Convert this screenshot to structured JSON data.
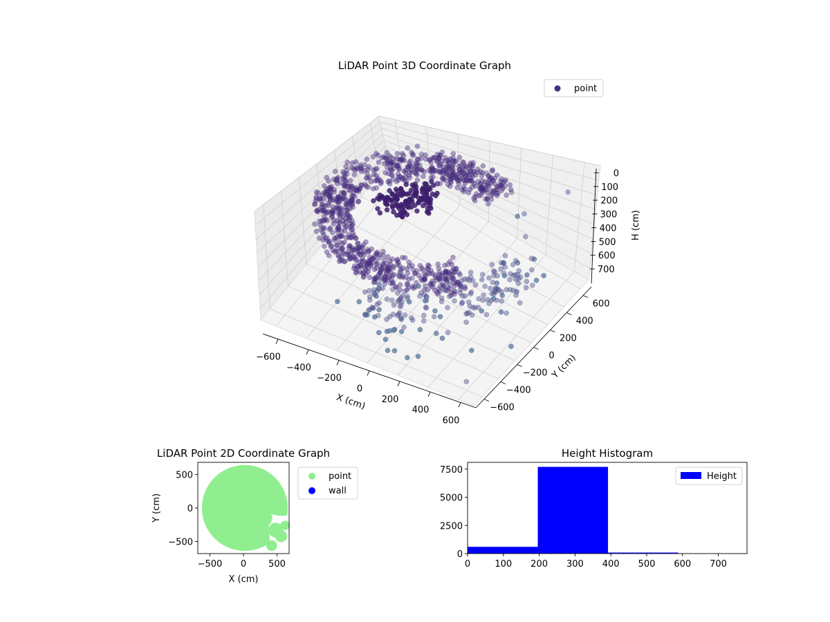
{
  "chart_data": [
    {
      "type": "scatter",
      "projection": "3d",
      "title": "LiDAR Point 3D Coordinate Graph",
      "xlabel": "X (cm)",
      "ylabel": "Y (cm)",
      "zlabel": "H (cm)",
      "xlim": [
        -700,
        700
      ],
      "ylim": [
        -700,
        700
      ],
      "zlim": [
        780,
        0
      ],
      "xticks": [
        "−600",
        "−400",
        "−200",
        "0",
        "200",
        "400",
        "600"
      ],
      "yticks": [
        "−600",
        "−400",
        "−200",
        "0",
        "200",
        "400",
        "600"
      ],
      "zticks": [
        "0",
        "100",
        "200",
        "300",
        "400",
        "500",
        "600",
        "700"
      ],
      "zaxis_inverted": true,
      "grid": true,
      "legend": {
        "position": "upper-right",
        "entries": [
          {
            "label": "point",
            "color": "#3b3584"
          }
        ]
      },
      "colormap": "viridis",
      "description_of_points": "Dense half-ring of points at radius ~450-650 cm and height ~200-300 cm, plus scattered points at greater heights/radii",
      "points_sample": [
        {
          "x": -600,
          "y": 50,
          "z": 250
        },
        {
          "x": -550,
          "y": 250,
          "z": 250
        },
        {
          "x": -450,
          "y": 420,
          "z": 250
        },
        {
          "x": -300,
          "y": 540,
          "z": 250
        },
        {
          "x": -100,
          "y": 600,
          "z": 250
        },
        {
          "x": 100,
          "y": 600,
          "z": 250
        },
        {
          "x": 300,
          "y": 540,
          "z": 260
        },
        {
          "x": 450,
          "y": 420,
          "z": 270
        },
        {
          "x": 550,
          "y": 250,
          "z": 280
        },
        {
          "x": -550,
          "y": -200,
          "z": 260
        },
        {
          "x": -450,
          "y": -400,
          "z": 270
        },
        {
          "x": -250,
          "y": -550,
          "z": 280
        },
        {
          "x": 0,
          "y": -600,
          "z": 300
        },
        {
          "x": 250,
          "y": -500,
          "z": 350
        },
        {
          "x": 450,
          "y": -350,
          "z": 400
        },
        {
          "x": 600,
          "y": -150,
          "z": 450
        },
        {
          "x": 600,
          "y": -600,
          "z": 720
        },
        {
          "x": 650,
          "y": 600,
          "z": 150
        }
      ]
    },
    {
      "type": "scatter",
      "title": "LiDAR Point 2D Coordinate Graph",
      "xlabel": "X (cm)",
      "ylabel": "Y (cm)",
      "xlim": [
        -680,
        680
      ],
      "ylim": [
        -680,
        680
      ],
      "xticks": [
        -500,
        0,
        500
      ],
      "yticks": [
        -500,
        0,
        500
      ],
      "series": [
        {
          "name": "point",
          "color": "#90ee90"
        },
        {
          "name": "wall",
          "color": "#0000ff"
        }
      ],
      "legend": {
        "position": "outside-right"
      },
      "description_of_points": "Filled disc of radius ~620 cm centered near origin, with a notch cut out on the lower-right side"
    },
    {
      "type": "bar",
      "subtype": "histogram",
      "title": "Height Histogram",
      "xlim": [
        0,
        780
      ],
      "ylim": [
        0,
        8100
      ],
      "xticks": [
        0,
        100,
        200,
        300,
        400,
        500,
        600,
        700
      ],
      "yticks": [
        0,
        2500,
        5000,
        7500
      ],
      "bins": [
        {
          "start": 0,
          "end": 196,
          "count": 600
        },
        {
          "start": 196,
          "end": 392,
          "count": 7700
        },
        {
          "start": 392,
          "end": 588,
          "count": 90
        },
        {
          "start": 588,
          "end": 784,
          "count": 10
        }
      ],
      "series": [
        {
          "name": "Height",
          "color": "#0000ff"
        }
      ],
      "legend": {
        "position": "upper-right"
      }
    }
  ]
}
